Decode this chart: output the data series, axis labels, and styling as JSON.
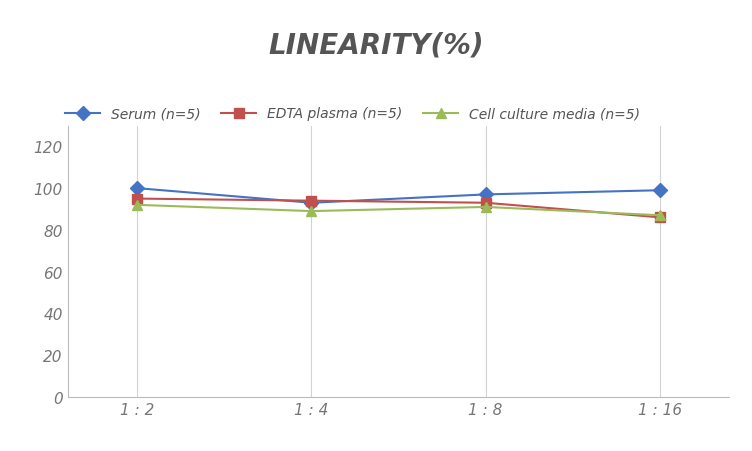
{
  "title": "LINEARITY(%)",
  "x_labels": [
    "1 : 2",
    "1 : 4",
    "1 : 8",
    "1 : 16"
  ],
  "x_positions": [
    0,
    1,
    2,
    3
  ],
  "series": [
    {
      "label": "Serum (n=5)",
      "values": [
        100,
        93,
        97,
        99
      ],
      "color": "#4472C4",
      "marker": "D",
      "linewidth": 1.5
    },
    {
      "label": "EDTA plasma (n=5)",
      "values": [
        95,
        94,
        93,
        86
      ],
      "color": "#C0504D",
      "marker": "s",
      "linewidth": 1.5
    },
    {
      "label": "Cell culture media (n=5)",
      "values": [
        92,
        89,
        91,
        87
      ],
      "color": "#9BBB59",
      "marker": "^",
      "linewidth": 1.5
    }
  ],
  "ylim": [
    0,
    130
  ],
  "yticks": [
    0,
    20,
    40,
    60,
    80,
    100,
    120
  ],
  "grid_color": "#D3D3D3",
  "background_color": "#FFFFFF",
  "title_fontsize": 20,
  "title_fontstyle": "italic",
  "title_fontweight": "bold",
  "title_color": "#555555",
  "legend_fontsize": 10,
  "tick_fontsize": 11,
  "tick_color": "#777777"
}
